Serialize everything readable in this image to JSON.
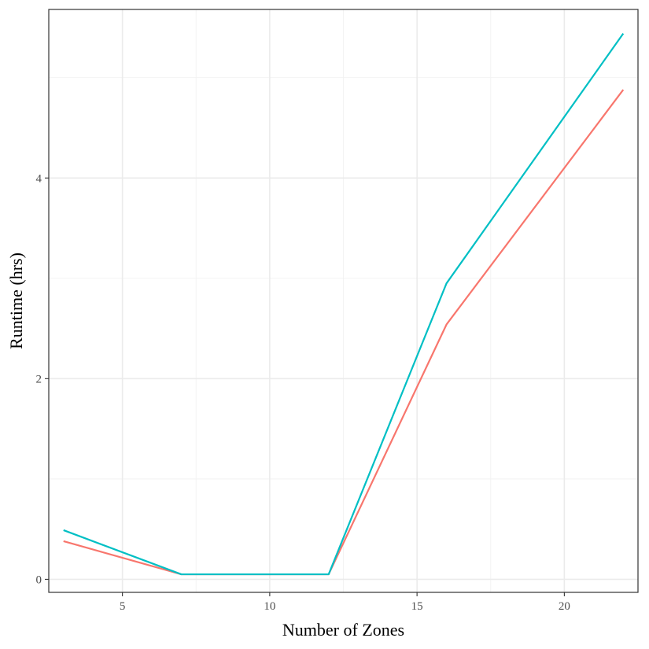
{
  "chart_data": {
    "type": "line",
    "title": "",
    "xlabel": "Number of Zones",
    "ylabel": "Runtime (hrs)",
    "xlim": [
      2.5,
      22.5
    ],
    "ylim": [
      -0.13,
      5.68
    ],
    "x_ticks": [
      5,
      10,
      15,
      20
    ],
    "x_tick_labels": [
      "5",
      "10",
      "15",
      "20"
    ],
    "y_ticks": [
      0,
      2,
      4
    ],
    "y_tick_labels": [
      "0",
      "2",
      "4"
    ],
    "x_minor_ticks": [
      7.5,
      12.5,
      17.5
    ],
    "y_minor_ticks": [
      1,
      3,
      5
    ],
    "grid": true,
    "legend": "none",
    "x": [
      3,
      7,
      12,
      16,
      22
    ],
    "series": [
      {
        "color": "#F8766D",
        "values": [
          0.38,
          0.05,
          0.05,
          2.54,
          4.88
        ]
      },
      {
        "color": "#00BFC4",
        "values": [
          0.49,
          0.05,
          0.05,
          2.95,
          5.44
        ]
      }
    ]
  }
}
